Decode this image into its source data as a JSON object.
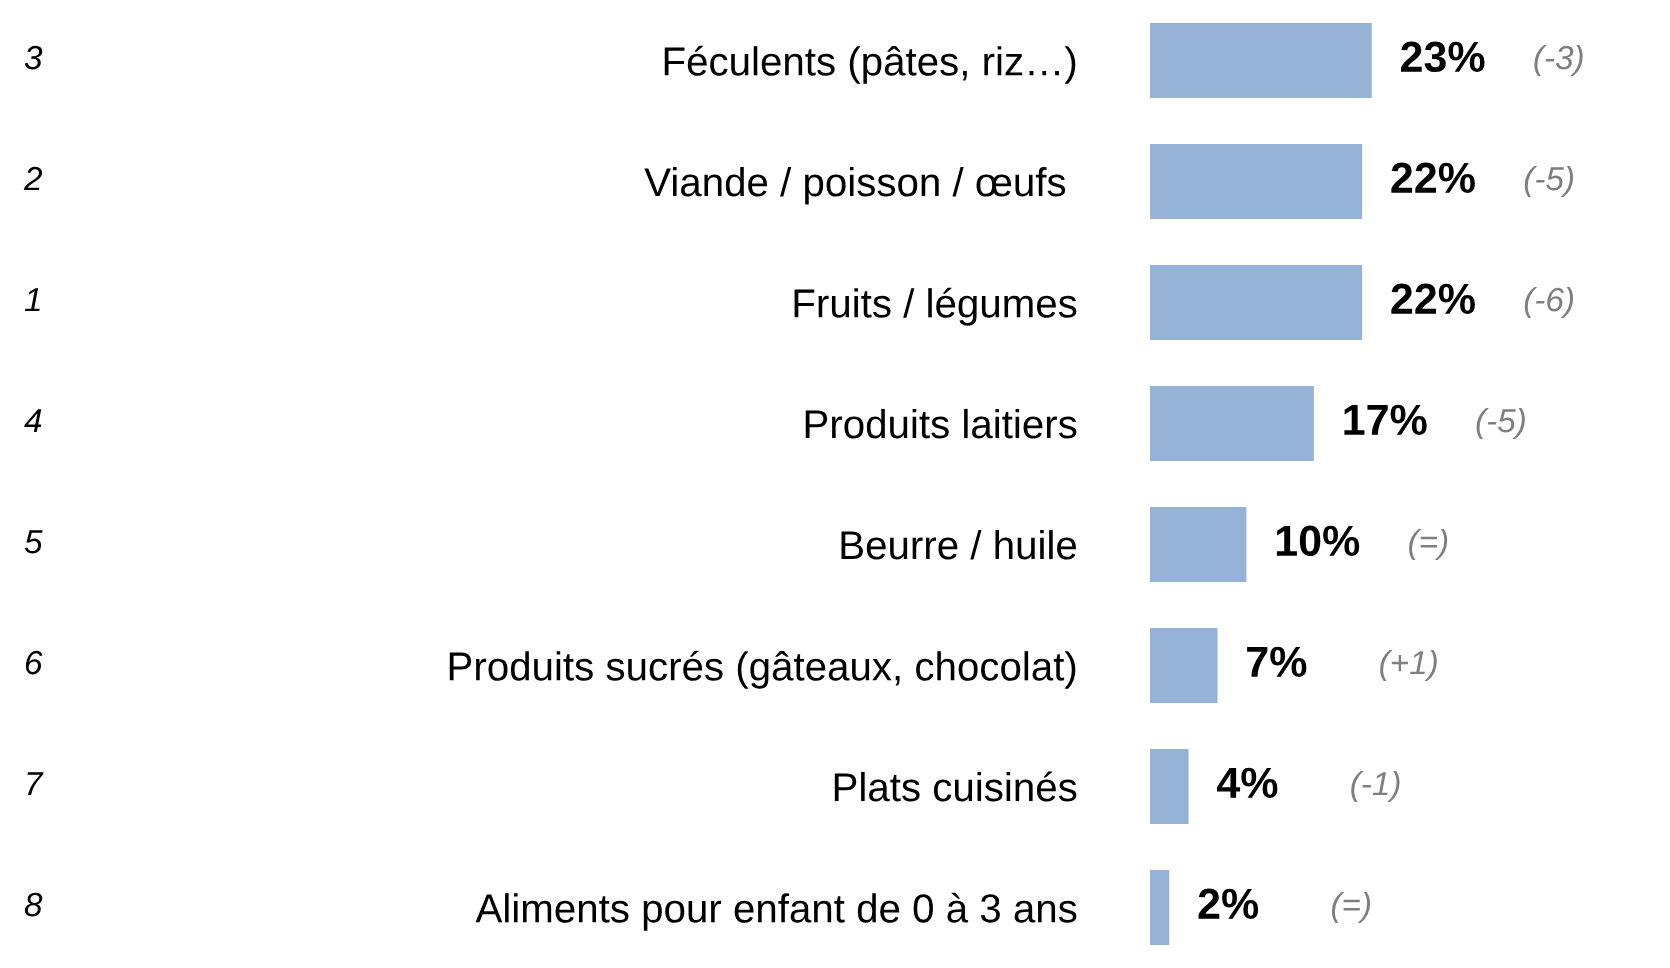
{
  "chart_data": {
    "type": "bar",
    "orientation": "horizontal",
    "categories": [
      "Féculents (pâtes, riz…)",
      "Viande / poisson / œufs ",
      "Fruits / légumes",
      "Produits laitiers",
      "Beurre / huile",
      "Produits sucrés (gâteaux, chocolat)",
      "Plats cuisinés",
      "Aliments pour enfant de 0 à 3 ans"
    ],
    "values": [
      23,
      22,
      22,
      17,
      10,
      7,
      4,
      2
    ],
    "value_labels": [
      "23%",
      "22%",
      "22%",
      "17%",
      "10%",
      "7%",
      "4%",
      "2%"
    ],
    "color": "#95b3d7",
    "annotations": [
      "3",
      "2",
      "1",
      "4",
      "5",
      "6",
      "7",
      "8",
      "(-3)",
      "(-5)",
      "(-6)",
      "(-5)",
      "(=)",
      "(+1)",
      "(-1)",
      "(=)"
    ]
  }
}
